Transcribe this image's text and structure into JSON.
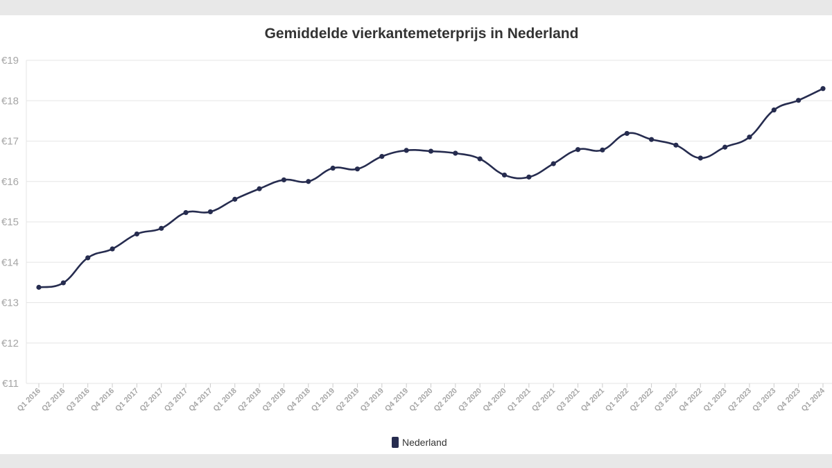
{
  "chart_data": {
    "type": "line",
    "title": "Gemiddelde vierkantemeterprijs in Nederland",
    "xlabel": "",
    "ylabel": "",
    "ylim": [
      11,
      19
    ],
    "y_ticks": [
      11,
      12,
      13,
      14,
      15,
      16,
      17,
      18,
      19
    ],
    "y_tick_prefix": "€",
    "grid": true,
    "legend_position": "bottom",
    "categories": [
      "Q1 2016",
      "Q2 2016",
      "Q3 2016",
      "Q4 2016",
      "Q1 2017",
      "Q2 2017",
      "Q3 2017",
      "Q4 2017",
      "Q1 2018",
      "Q2 2018",
      "Q3 2018",
      "Q4 2018",
      "Q1 2019",
      "Q2 2019",
      "Q3 2019",
      "Q4 2019",
      "Q1 2020",
      "Q2 2020",
      "Q3 2020",
      "Q4 2020",
      "Q1 2021",
      "Q2 2021",
      "Q3 2021",
      "Q4 2021",
      "Q1 2022",
      "Q2 2022",
      "Q3 2022",
      "Q4 2022",
      "Q1 2023",
      "Q2 2023",
      "Q3 2023",
      "Q4 2023",
      "Q1 2024"
    ],
    "series": [
      {
        "name": "Nederland",
        "color": "#262c4f",
        "values": [
          13.38,
          13.49,
          14.11,
          14.33,
          14.7,
          14.84,
          15.23,
          15.25,
          15.56,
          15.82,
          16.04,
          16.0,
          16.33,
          16.31,
          16.62,
          16.77,
          16.75,
          16.7,
          16.56,
          16.16,
          16.11,
          16.44,
          16.79,
          16.78,
          17.19,
          17.04,
          16.9,
          16.58,
          16.85,
          17.1,
          17.77,
          18.01,
          18.3
        ]
      }
    ]
  }
}
